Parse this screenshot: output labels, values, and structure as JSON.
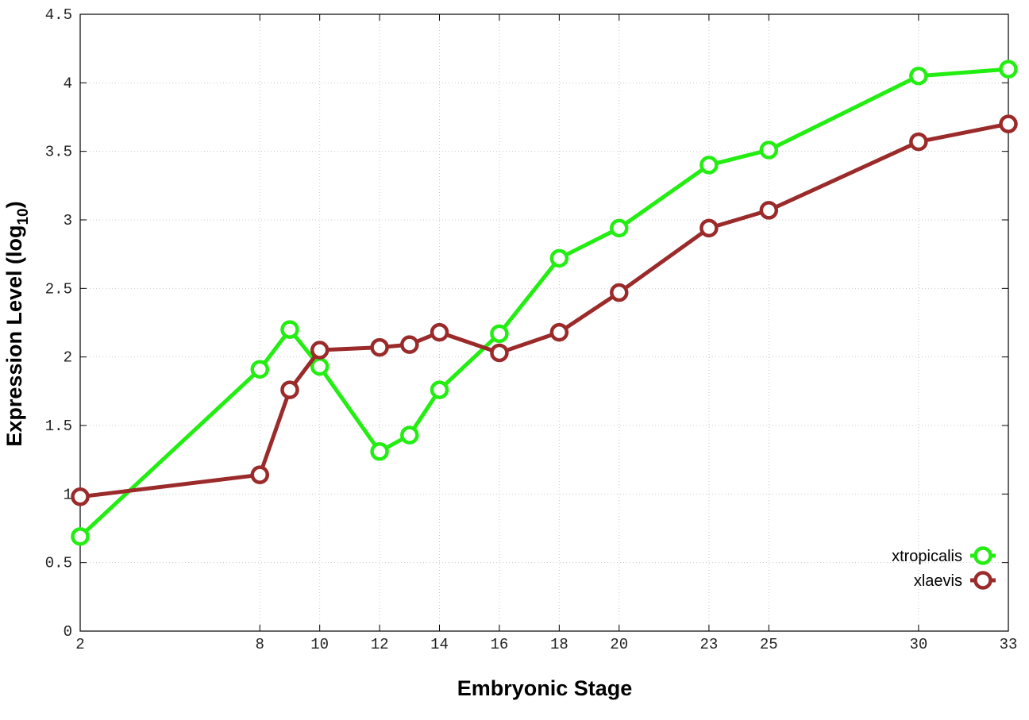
{
  "chart_data": {
    "type": "line",
    "xlabel": "Embryonic Stage",
    "ylabel_main": "Expression Level (log",
    "ylabel_sub": "10",
    "ylabel_close": ")",
    "xlim": [
      2,
      33
    ],
    "ylim": [
      0,
      4.5
    ],
    "x_ticks": [
      2,
      8,
      10,
      12,
      14,
      16,
      18,
      20,
      23,
      25,
      30,
      33
    ],
    "y_ticks": [
      0,
      0.5,
      1,
      1.5,
      2,
      2.5,
      3,
      3.5,
      4,
      4.5
    ],
    "y_tick_labels": [
      "0",
      "0.5",
      "1",
      "1.5",
      "2",
      "2.5",
      "3",
      "3.5",
      "4",
      "4.5"
    ],
    "x_tick_labels": [
      "2",
      "8",
      "10",
      "12",
      "14",
      "16",
      "18",
      "20",
      "23",
      "25",
      "30",
      "33"
    ],
    "x": [
      2,
      8,
      9,
      10,
      12,
      13,
      14,
      16,
      18,
      20,
      23,
      25,
      30,
      33
    ],
    "grid": true,
    "legend_position": "bottom-right",
    "series": [
      {
        "name": "xtropicalis",
        "color": "#22ee11",
        "values": [
          0.69,
          1.91,
          2.2,
          1.93,
          1.31,
          1.43,
          1.76,
          2.17,
          2.72,
          2.94,
          3.4,
          3.51,
          4.05,
          4.1
        ]
      },
      {
        "name": "xlaevis",
        "color": "#9b2a2a",
        "values": [
          0.98,
          1.14,
          1.76,
          2.05,
          2.07,
          2.09,
          2.18,
          2.03,
          2.18,
          2.47,
          2.94,
          3.07,
          3.57,
          3.7
        ]
      }
    ]
  }
}
